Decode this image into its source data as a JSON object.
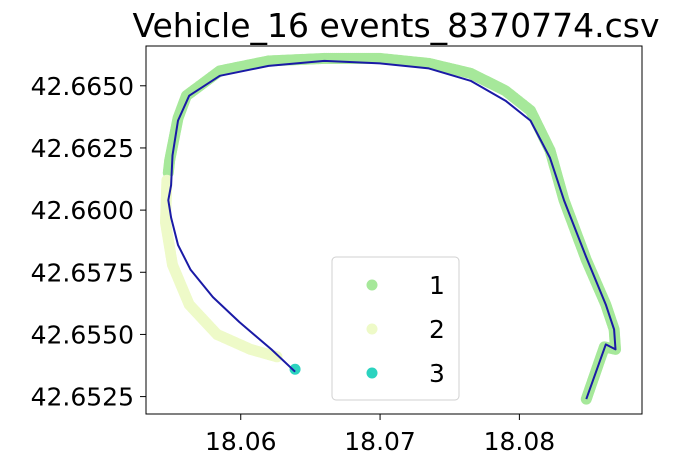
{
  "chart_data": {
    "type": "scatter",
    "title": "Vehicle_16 events_8370774.csv",
    "xlabel": "",
    "ylabel": "",
    "xlim": [
      18.0532,
      18.0888
    ],
    "ylim": [
      42.6518,
      42.6666
    ],
    "x_ticks": [
      18.06,
      18.07,
      18.08
    ],
    "x_tick_labels": [
      "18.06",
      "18.07",
      "18.08"
    ],
    "y_ticks": [
      42.6525,
      42.655,
      42.6575,
      42.66,
      42.6625,
      42.665
    ],
    "y_tick_labels": [
      "42.6525",
      "42.6550",
      "42.6575",
      "42.6600",
      "42.6625",
      "42.6650"
    ],
    "grid": false,
    "legend": {
      "placement": "lower center"
    },
    "series": [
      {
        "name": "1",
        "color": "#a6e89a",
        "points": [
          [
            18.0848,
            42.6524
          ],
          [
            18.0861,
            42.6545
          ],
          [
            18.0869,
            42.6544
          ],
          [
            18.0868,
            42.6552
          ],
          [
            18.0862,
            42.6562
          ],
          [
            18.0848,
            42.658
          ],
          [
            18.0832,
            42.6604
          ],
          [
            18.0822,
            42.6624
          ],
          [
            18.0808,
            42.664
          ],
          [
            18.079,
            42.6648
          ],
          [
            18.0765,
            42.6655
          ],
          [
            18.0735,
            42.6659
          ],
          [
            18.07,
            42.6661
          ],
          [
            18.066,
            42.6661
          ],
          [
            18.062,
            42.666
          ],
          [
            18.0585,
            42.6656
          ],
          [
            18.0561,
            42.6646
          ],
          [
            18.0555,
            42.6637
          ],
          [
            18.0549,
            42.662
          ],
          [
            18.0548,
            42.6615
          ]
        ]
      },
      {
        "name": "2",
        "color": "#eefac8",
        "points": [
          [
            18.0547,
            42.6612
          ],
          [
            18.0546,
            42.6595
          ],
          [
            18.0551,
            42.6578
          ],
          [
            18.0563,
            42.6562
          ],
          [
            18.0583,
            42.655
          ],
          [
            18.0607,
            42.6544
          ],
          [
            18.0626,
            42.6541
          ]
        ]
      },
      {
        "name": "3",
        "color": "#2bd3bf",
        "points": [
          [
            18.0639,
            42.6536
          ]
        ]
      }
    ],
    "track": {
      "color": "#1a1aa6",
      "points": [
        [
          18.0639,
          42.6535
        ],
        [
          18.0622,
          42.6544
        ],
        [
          18.0599,
          42.6555
        ],
        [
          18.058,
          42.6565
        ],
        [
          18.0564,
          42.6576
        ],
        [
          18.0555,
          42.6586
        ],
        [
          18.055,
          42.6597
        ],
        [
          18.0548,
          42.6604
        ],
        [
          18.055,
          42.661
        ],
        [
          18.0551,
          42.6622
        ],
        [
          18.0555,
          42.6636
        ],
        [
          18.0563,
          42.6646
        ],
        [
          18.0585,
          42.6654
        ],
        [
          18.062,
          42.6658
        ],
        [
          18.066,
          42.666
        ],
        [
          18.07,
          42.6659
        ],
        [
          18.0735,
          42.6657
        ],
        [
          18.0765,
          42.6652
        ],
        [
          18.079,
          42.6644
        ],
        [
          18.0808,
          42.6636
        ],
        [
          18.0822,
          42.6621
        ],
        [
          18.0832,
          42.6604
        ],
        [
          18.0848,
          42.6581
        ],
        [
          18.0862,
          42.6562
        ],
        [
          18.0868,
          42.6552
        ],
        [
          18.0869,
          42.6544
        ],
        [
          18.0862,
          42.6546
        ],
        [
          18.0848,
          42.6524
        ]
      ]
    }
  }
}
